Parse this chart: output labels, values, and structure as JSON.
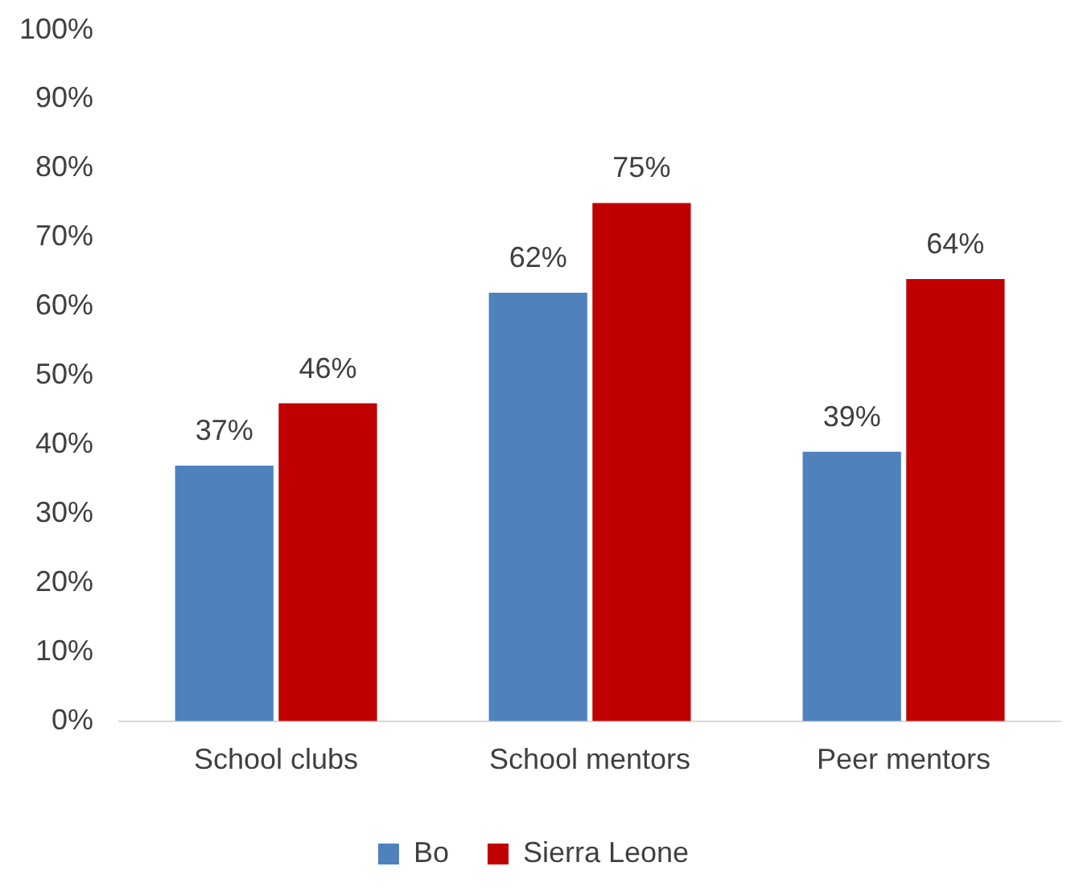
{
  "chart_data": {
    "type": "bar",
    "categories": [
      "School clubs",
      "School mentors",
      "Peer mentors"
    ],
    "series": [
      {
        "name": "Bo",
        "color": "#4f81bd",
        "values": [
          37,
          62,
          39
        ],
        "value_labels": [
          "37%",
          "62%",
          "39%"
        ]
      },
      {
        "name": "Sierra Leone",
        "color": "#c00000",
        "values": [
          46,
          75,
          64
        ],
        "value_labels": [
          "46%",
          "75%",
          "64%"
        ]
      }
    ],
    "ylim": [
      0,
      100
    ],
    "yticks": [
      {
        "value": 0,
        "label": "0%"
      },
      {
        "value": 10,
        "label": "10%"
      },
      {
        "value": 20,
        "label": "20%"
      },
      {
        "value": 30,
        "label": "30%"
      },
      {
        "value": 40,
        "label": "40%"
      },
      {
        "value": 50,
        "label": "50%"
      },
      {
        "value": 60,
        "label": "60%"
      },
      {
        "value": 70,
        "label": "70%"
      },
      {
        "value": 80,
        "label": "80%"
      },
      {
        "value": 90,
        "label": "90%"
      },
      {
        "value": 100,
        "label": "100%"
      }
    ],
    "grid": false,
    "legend": "bottom"
  }
}
